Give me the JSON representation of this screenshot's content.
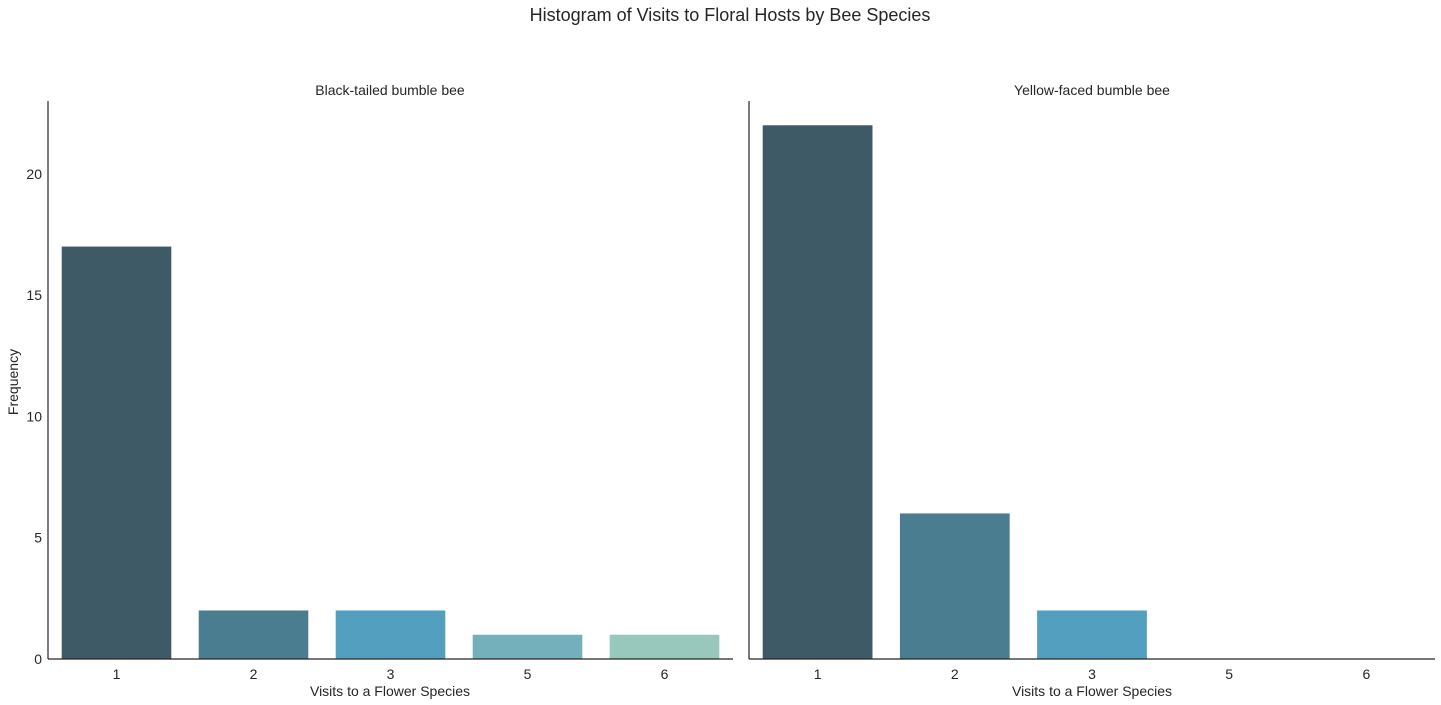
{
  "chart_data": {
    "type": "bar",
    "title": "Histogram of Visits to Floral Hosts by Bee Species",
    "xlabel": "Visits to a Flower Species",
    "ylabel": "Frequency",
    "categories": [
      "1",
      "2",
      "3",
      "5",
      "6"
    ],
    "ylim": [
      0,
      23
    ],
    "yticks": [
      0,
      5,
      10,
      15,
      20
    ],
    "grid": false,
    "colors": [
      "#3d5a66",
      "#497d8f",
      "#529fbf",
      "#73b0bb",
      "#98c7bb"
    ],
    "panels": [
      {
        "name": "Black-tailed bumble bee",
        "values": [
          17,
          2,
          2,
          1,
          1
        ]
      },
      {
        "name": "Yellow-faced bumble bee",
        "values": [
          22,
          6,
          2,
          0,
          0
        ]
      }
    ]
  }
}
